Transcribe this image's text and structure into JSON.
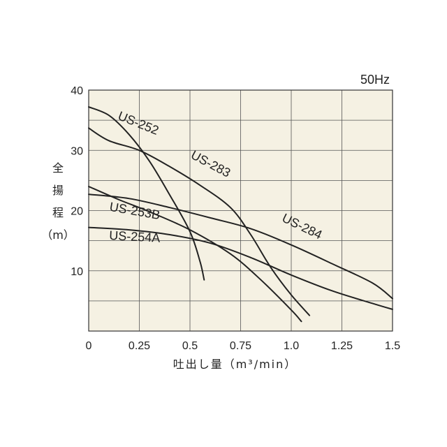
{
  "chart_data": {
    "type": "line",
    "frequency_label": "50Hz",
    "xlabel": "吐出し量（m³/min）",
    "ylabel": "全揚程（m）",
    "xlim": [
      0,
      1.5
    ],
    "ylim": [
      0,
      40
    ],
    "x_ticks": [
      "0",
      "0.25",
      "0.5",
      "0.75",
      "1.0",
      "1.25",
      "1.5"
    ],
    "y_ticks": [
      "10",
      "20",
      "30",
      "40"
    ],
    "grid": true,
    "background": "#f5f1e3",
    "series": [
      {
        "name": "US-252",
        "points": [
          [
            0.0,
            37.2
          ],
          [
            0.1,
            35.8
          ],
          [
            0.2,
            32.6
          ],
          [
            0.3,
            28.2
          ],
          [
            0.4,
            22.6
          ],
          [
            0.5,
            16.5
          ],
          [
            0.55,
            11.5
          ],
          [
            0.57,
            8.5
          ]
        ],
        "label_at": [
          0.14,
          35.2
        ],
        "label_rot": 22
      },
      {
        "name": "US-283",
        "points": [
          [
            0.0,
            33.7
          ],
          [
            0.1,
            31.6
          ],
          [
            0.25,
            30.0
          ],
          [
            0.4,
            27.3
          ],
          [
            0.55,
            24.2
          ],
          [
            0.7,
            20.5
          ],
          [
            0.8,
            16.0
          ],
          [
            0.9,
            10.5
          ],
          [
            1.0,
            6.0
          ],
          [
            1.09,
            2.6
          ]
        ],
        "label_at": [
          0.5,
          28.8
        ],
        "label_rot": 28
      },
      {
        "name": "US-284",
        "points": [
          [
            0.0,
            22.7
          ],
          [
            0.2,
            22.0
          ],
          [
            0.4,
            20.5
          ],
          [
            0.6,
            18.8
          ],
          [
            0.8,
            17.0
          ],
          [
            1.0,
            14.3
          ],
          [
            1.2,
            11.2
          ],
          [
            1.4,
            8.0
          ],
          [
            1.5,
            5.4
          ]
        ],
        "label_at": [
          0.95,
          18.3
        ],
        "label_rot": 26
      },
      {
        "name": "US-253B",
        "points": [
          [
            0.0,
            24.0
          ],
          [
            0.15,
            21.8
          ],
          [
            0.3,
            19.8
          ],
          [
            0.5,
            16.8
          ],
          [
            0.7,
            12.8
          ],
          [
            0.85,
            8.5
          ],
          [
            1.0,
            3.5
          ],
          [
            1.05,
            1.6
          ]
        ],
        "label_at": [
          0.1,
          20.0
        ],
        "label_rot": 10
      },
      {
        "name": "US-254A",
        "points": [
          [
            0.0,
            17.2
          ],
          [
            0.2,
            16.8
          ],
          [
            0.4,
            16.0
          ],
          [
            0.6,
            14.6
          ],
          [
            0.8,
            12.2
          ],
          [
            1.0,
            9.3
          ],
          [
            1.2,
            6.7
          ],
          [
            1.4,
            4.6
          ],
          [
            1.5,
            3.6
          ]
        ],
        "label_at": [
          0.1,
          15.2
        ],
        "label_rot": 3
      }
    ]
  }
}
